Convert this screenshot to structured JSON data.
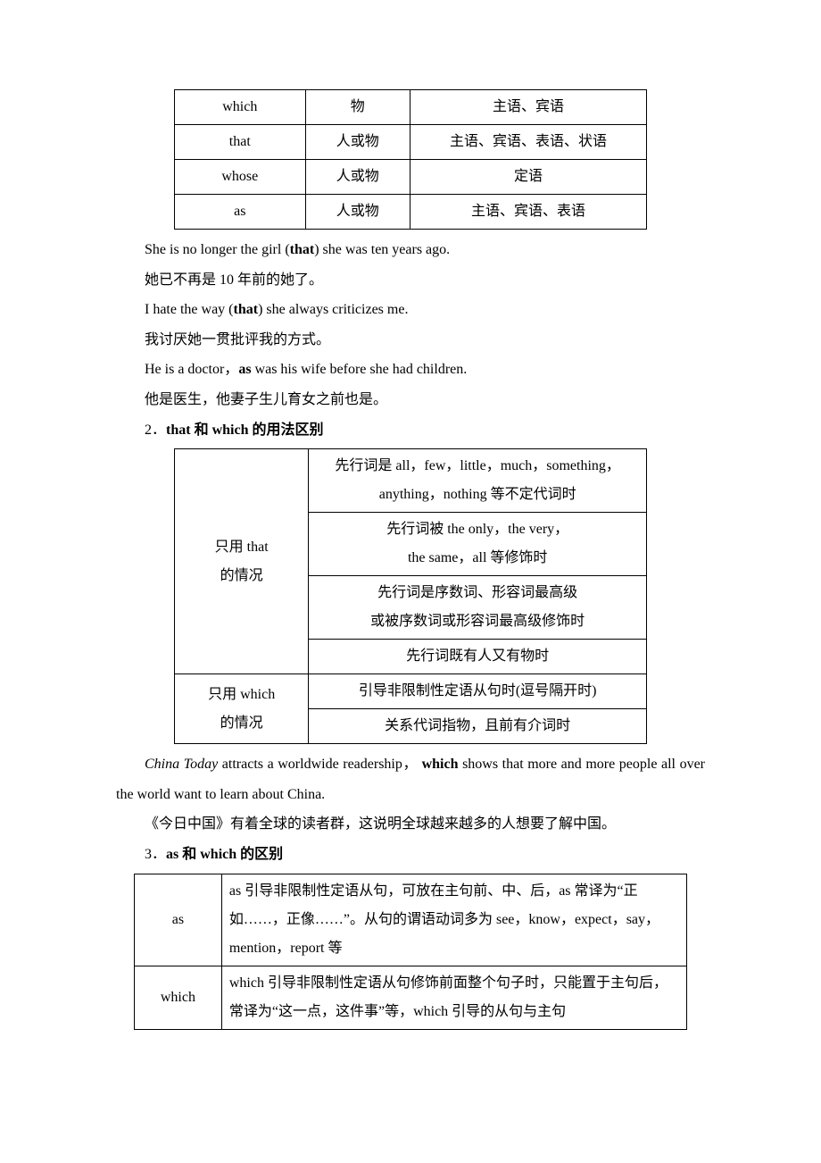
{
  "table1": {
    "rows": [
      {
        "pronoun": "which",
        "referent": "物",
        "role": "主语、宾语"
      },
      {
        "pronoun": "that",
        "referent": "人或物",
        "role": "主语、宾语、表语、状语"
      },
      {
        "pronoun": "whose",
        "referent": "人或物",
        "role": "定语"
      },
      {
        "pronoun": "as",
        "referent": "人或物",
        "role": "主语、宾语、表语"
      }
    ]
  },
  "examples": {
    "ex1_en_a": "She is no longer the girl (",
    "ex1_en_b": "that",
    "ex1_en_c": ") she was ten years ago.",
    "ex1_zh": "她已不再是 10 年前的她了。",
    "ex2_en_a": "I hate the way (",
    "ex2_en_b": "that",
    "ex2_en_c": ") she always criticizes me.",
    "ex2_zh": "我讨厌她一贯批评我的方式。",
    "ex3_en_a": "He is a doctor，",
    "ex3_en_b": "as",
    "ex3_en_c": " was his wife before she had children.",
    "ex3_zh": "他是医生，他妻子生儿育女之前也是。"
  },
  "section2": {
    "title_a": "2．",
    "title_b": "that 和 which 的用法区别"
  },
  "table2": {
    "left1_line1": "只用 that",
    "left1_line2": "的情况",
    "r1_line1": "先行词是 all，few，little，much，something，",
    "r1_line2": "anything，nothing 等不定代词时",
    "r2_line1": "先行词被 the only，the very，",
    "r2_line2": "the same，all 等修饰时",
    "r3_line1": "先行词是序数词、形容词最高级",
    "r3_line2": "或被序数词或形容词最高级修饰时",
    "r4": "先行词既有人又有物时",
    "left2_line1": "只用 which",
    "left2_line2": "的情况",
    "r5": "引导非限制性定语从句时(逗号隔开时)",
    "r6": "关系代词指物，且前有介词时"
  },
  "para2": {
    "en_a": "China Today",
    "en_b": " attracts a worldwide readership， ",
    "en_c": "which",
    "en_d": " shows that more and more people all over the world want to learn about China.",
    "zh": "《今日中国》有着全球的读者群，这说明全球越来越多的人想要了解中国。"
  },
  "section3": {
    "title_a": "3．",
    "title_b": "as 和 which 的区别"
  },
  "table3": {
    "left1": "as",
    "r1": "as 引导非限制性定语从句，可放在主句前、中、后，as 常译为“正如……，正像……”。从句的谓语动词多为 see，know，expect，say，mention，report 等",
    "left2": "which",
    "r2": "which 引导非限制性定语从句修饰前面整个句子时，只能置于主句后，常译为“这一点，这件事”等，which 引导的从句与主句"
  }
}
